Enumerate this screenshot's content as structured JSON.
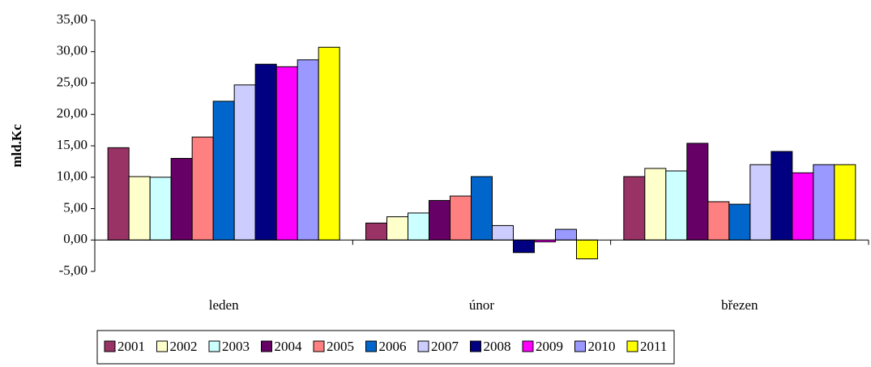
{
  "chart_data": {
    "type": "bar",
    "y_label": "mld.Kc",
    "categories": [
      "leden",
      "únor",
      "březen"
    ],
    "series": [
      {
        "name": "2001",
        "color": "#993366",
        "values": [
          14.7,
          2.7,
          10.1
        ]
      },
      {
        "name": "2002",
        "color": "#FFFFCC",
        "values": [
          10.1,
          3.7,
          11.4
        ]
      },
      {
        "name": "2003",
        "color": "#CCFFFF",
        "values": [
          10.0,
          4.3,
          11.0
        ]
      },
      {
        "name": "2004",
        "color": "#660066",
        "values": [
          13.0,
          6.3,
          15.4
        ]
      },
      {
        "name": "2005",
        "color": "#FF8080",
        "values": [
          16.4,
          7.0,
          6.1
        ]
      },
      {
        "name": "2006",
        "color": "#0066CC",
        "values": [
          22.1,
          10.1,
          5.7
        ]
      },
      {
        "name": "2007",
        "color": "#CCCCFF",
        "values": [
          24.7,
          2.3,
          12.0
        ]
      },
      {
        "name": "2008",
        "color": "#000080",
        "values": [
          28.0,
          -2.0,
          14.1
        ]
      },
      {
        "name": "2009",
        "color": "#FF00FF",
        "values": [
          27.6,
          -0.3,
          10.7
        ]
      },
      {
        "name": "2010",
        "color": "#9999FF",
        "values": [
          28.7,
          1.7,
          12.0
        ]
      },
      {
        "name": "2011",
        "color": "#FFFF00",
        "values": [
          30.7,
          -3.0,
          12.0
        ]
      }
    ],
    "ylim": [
      -5,
      35
    ],
    "yticks": [
      {
        "value": -5,
        "label": "-5,00"
      },
      {
        "value": 0,
        "label": "0,00"
      },
      {
        "value": 5,
        "label": "5,00"
      },
      {
        "value": 10,
        "label": "10,00"
      },
      {
        "value": 15,
        "label": "15,00"
      },
      {
        "value": 20,
        "label": "20,00"
      },
      {
        "value": 25,
        "label": "25,00"
      },
      {
        "value": 30,
        "label": "30,00"
      },
      {
        "value": 35,
        "label": "35,00"
      }
    ],
    "grid": false,
    "legend": "bottom"
  }
}
